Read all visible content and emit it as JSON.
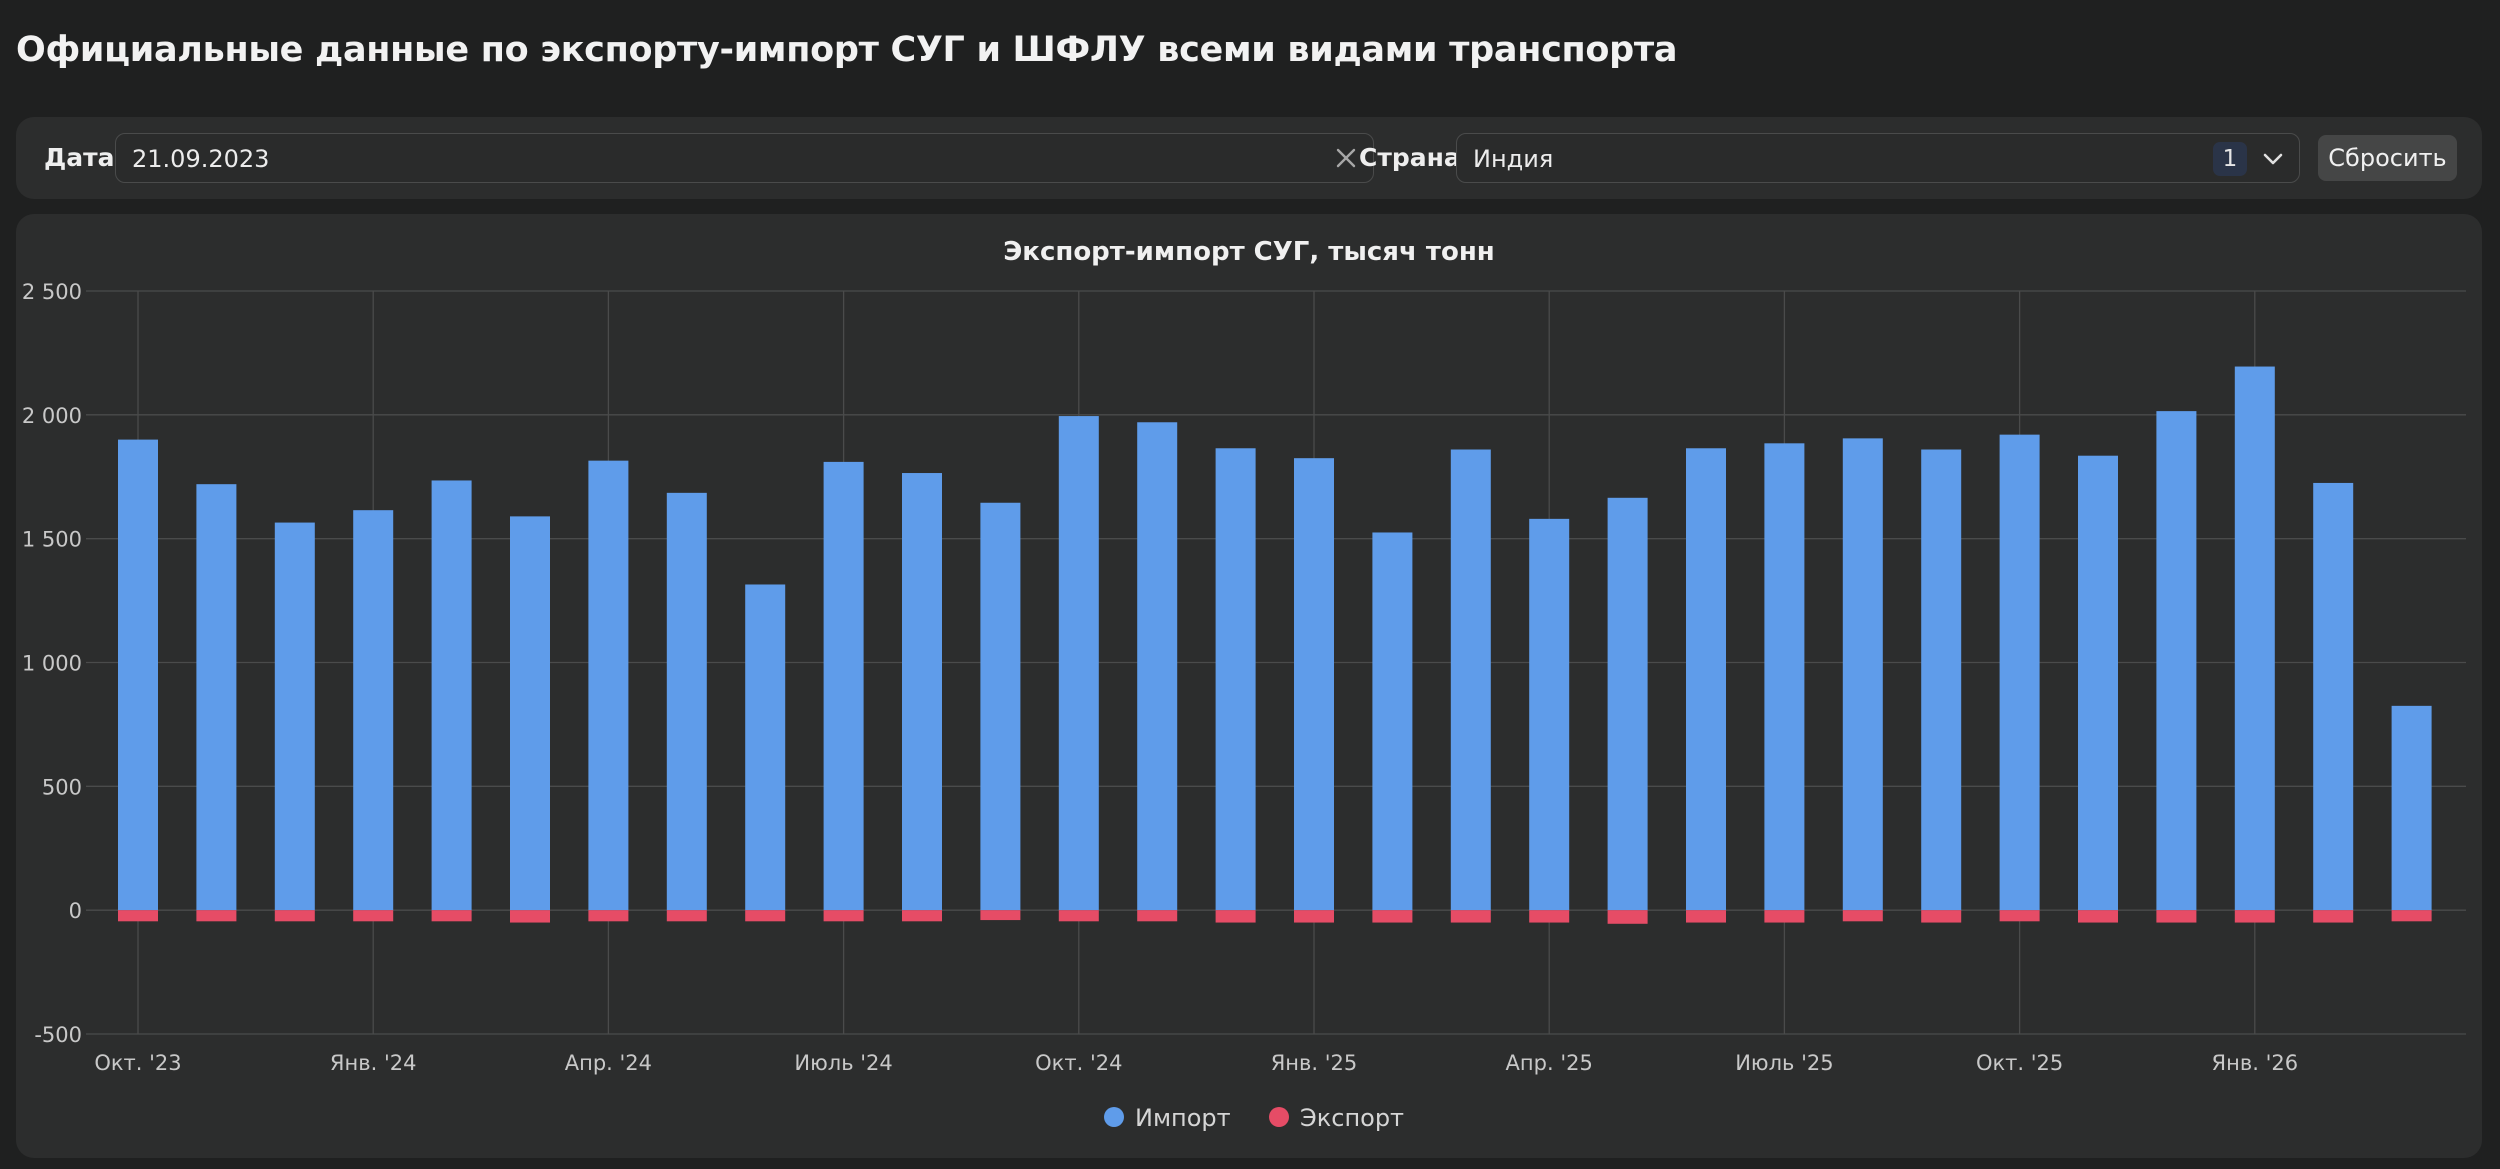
{
  "page": {
    "title": "Официальные данные по экспорту-импорт СУГ и ШФЛУ всеми видами транспорта"
  },
  "filters": {
    "date_label": "Дата",
    "date_value": "21.09.2023",
    "country_label": "Страна",
    "country_value": "Индия",
    "country_selected_count": "1",
    "reset_label": "Сбросить",
    "icons": {
      "clear": "close-icon",
      "dropdown": "chevron-down-icon"
    }
  },
  "colors": {
    "import": "#5f9cea",
    "export": "#e64c66",
    "panel": "#2c2d2d",
    "background": "#1f2020",
    "grid": "#4a4b4b"
  },
  "chart_data": {
    "type": "bar",
    "stacked": true,
    "title": "Экспорт-импорт СУГ, тысяч тонн",
    "xlabel": "",
    "ylabel": "",
    "ylim": [
      -500,
      2500
    ],
    "yticks": [
      -500,
      0,
      500,
      1000,
      1500,
      2000,
      2500
    ],
    "ytick_labels": [
      "-500",
      "0",
      "500",
      "1 000",
      "1 500",
      "2 000",
      "2 500"
    ],
    "categories": [
      "2023-10",
      "2023-11",
      "2023-12",
      "2024-01",
      "2024-02",
      "2024-03",
      "2024-04",
      "2024-05",
      "2024-06",
      "2024-07",
      "2024-08",
      "2024-09",
      "2024-10",
      "2024-11",
      "2024-12",
      "2025-01",
      "2025-02",
      "2025-03",
      "2025-04",
      "2025-05",
      "2025-06",
      "2025-07",
      "2025-08",
      "2025-09",
      "2025-10",
      "2025-11",
      "2025-12",
      "2026-01",
      "2026-02",
      "2026-03"
    ],
    "x_tick_labels": [
      {
        "category": "2023-10",
        "label": "Окт. '23"
      },
      {
        "category": "2024-01",
        "label": "Янв. '24"
      },
      {
        "category": "2024-04",
        "label": "Апр. '24"
      },
      {
        "category": "2024-07",
        "label": "Июль '24"
      },
      {
        "category": "2024-10",
        "label": "Окт. '24"
      },
      {
        "category": "2025-01",
        "label": "Янв. '25"
      },
      {
        "category": "2025-04",
        "label": "Апр. '25"
      },
      {
        "category": "2025-07",
        "label": "Июль '25"
      },
      {
        "category": "2025-10",
        "label": "Окт. '25"
      },
      {
        "category": "2026-01",
        "label": "Янв. '26"
      }
    ],
    "series": [
      {
        "name": "Импорт",
        "color": "#5f9cea",
        "values": [
          1900,
          1720,
          1565,
          1615,
          1735,
          1590,
          1815,
          1685,
          1315,
          1810,
          1765,
          1645,
          1995,
          1970,
          1865,
          1825,
          1525,
          1860,
          1580,
          1665,
          1865,
          1885,
          1905,
          1860,
          1920,
          1835,
          2015,
          2195,
          1725,
          825
        ]
      },
      {
        "name": "Экспорт",
        "color": "#e64c66",
        "values": [
          -45,
          -45,
          -45,
          -45,
          -45,
          -50,
          -45,
          -45,
          -45,
          -45,
          -45,
          -40,
          -45,
          -45,
          -50,
          -50,
          -50,
          -50,
          -50,
          -55,
          -50,
          -50,
          -45,
          -50,
          -45,
          -50,
          -50,
          -50,
          -50,
          -45
        ]
      }
    ],
    "grid": true,
    "legend_position": "bottom-center"
  }
}
